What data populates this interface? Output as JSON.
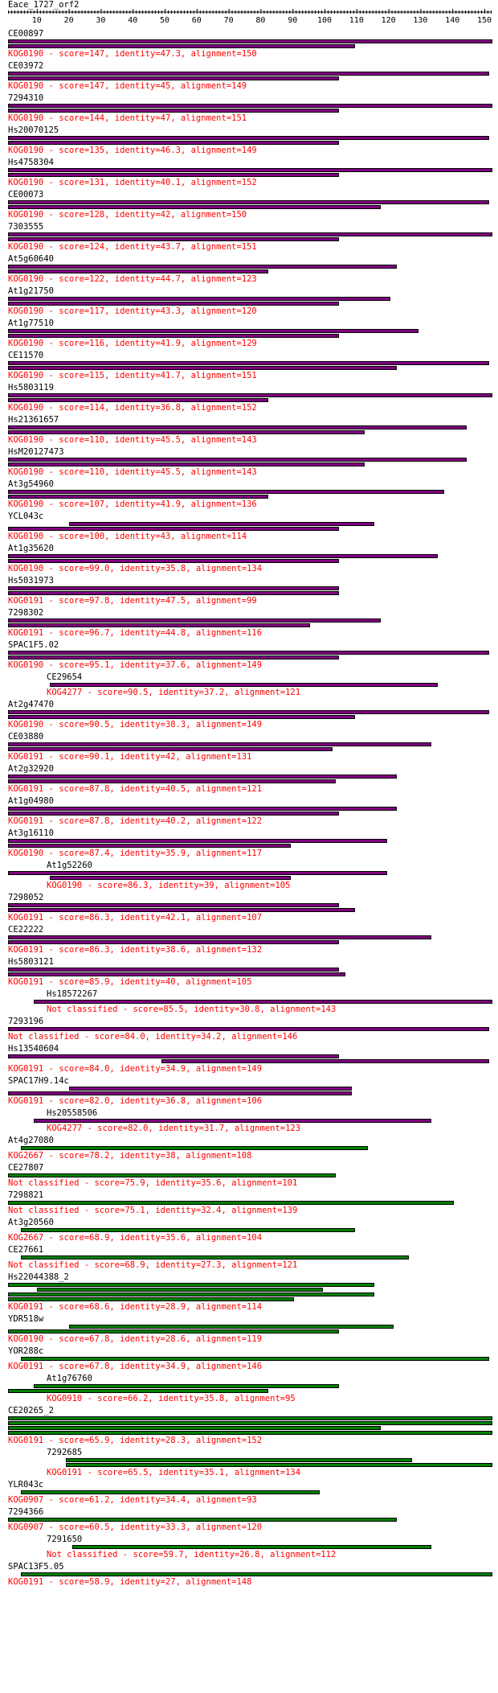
{
  "title": "Eace_1727_orf2",
  "axis": {
    "ticks": [
      "10",
      "20",
      "30",
      "40",
      "50",
      "60",
      "70",
      "80",
      "90",
      "100",
      "110",
      "120",
      "130",
      "140",
      "150"
    ],
    "max": 152
  },
  "colors": {
    "purple": "#800080",
    "green": "#008000",
    "text": "#000000",
    "info": "#ff0000"
  },
  "hits": [
    {
      "id": "CE00897",
      "indent": false,
      "info": "KOG0190 - score=147, identity=47.3, alignment=150",
      "color": "purple",
      "bars": [
        [
          1,
          152
        ],
        [
          1,
          109
        ]
      ]
    },
    {
      "id": "CE03972",
      "indent": false,
      "info": "KOG0190 - score=147, identity=45, alignment=149",
      "color": "purple",
      "bars": [
        [
          1,
          151
        ],
        [
          1,
          104
        ]
      ]
    },
    {
      "id": "7294310",
      "indent": false,
      "info": "KOG0190 - score=144, identity=47, alignment=151",
      "color": "purple",
      "bars": [
        [
          1,
          152
        ],
        [
          1,
          104
        ]
      ]
    },
    {
      "id": "Hs20070125",
      "indent": false,
      "info": "KOG0190 - score=135, identity=46.3, alignment=149",
      "color": "purple",
      "bars": [
        [
          1,
          151
        ],
        [
          1,
          104
        ]
      ]
    },
    {
      "id": "Hs4758304",
      "indent": false,
      "info": "KOG0190 - score=131, identity=40.1, alignment=152",
      "color": "purple",
      "bars": [
        [
          1,
          152
        ],
        [
          1,
          104
        ]
      ]
    },
    {
      "id": "CE00073",
      "indent": false,
      "info": "KOG0190 - score=128, identity=42, alignment=150",
      "color": "purple",
      "bars": [
        [
          1,
          151
        ],
        [
          1,
          117
        ]
      ]
    },
    {
      "id": "7303555",
      "indent": false,
      "info": "KOG0190 - score=124, identity=43.7, alignment=151",
      "color": "purple",
      "bars": [
        [
          1,
          152
        ],
        [
          1,
          104
        ]
      ]
    },
    {
      "id": "At5g60640",
      "indent": false,
      "info": "KOG0190 - score=122, identity=44.7, alignment=123",
      "color": "purple",
      "bars": [
        [
          1,
          122
        ],
        [
          1,
          82
        ]
      ]
    },
    {
      "id": "At1g21750",
      "indent": false,
      "info": "KOG0190 - score=117, identity=43.3, alignment=120",
      "color": "purple",
      "bars": [
        [
          1,
          120
        ],
        [
          1,
          104
        ]
      ]
    },
    {
      "id": "At1g77510",
      "indent": false,
      "info": "KOG0190 - score=116, identity=41.9, alignment=129",
      "color": "purple",
      "bars": [
        [
          1,
          129
        ],
        [
          1,
          104
        ]
      ]
    },
    {
      "id": "CE11570",
      "indent": false,
      "info": "KOG0190 - score=115, identity=41.7, alignment=151",
      "color": "purple",
      "bars": [
        [
          1,
          151
        ],
        [
          1,
          122
        ]
      ]
    },
    {
      "id": "Hs5803119",
      "indent": false,
      "info": "KOG0190 - score=114, identity=36.8, alignment=152",
      "color": "purple",
      "bars": [
        [
          1,
          152
        ],
        [
          1,
          82
        ]
      ]
    },
    {
      "id": "Hs21361657",
      "indent": false,
      "info": "KOG0190 - score=110, identity=45.5, alignment=143",
      "color": "purple",
      "bars": [
        [
          1,
          144
        ],
        [
          1,
          112
        ]
      ]
    },
    {
      "id": "HsM20127473",
      "indent": false,
      "info": "KOG0190 - score=110, identity=45.5, alignment=143",
      "color": "purple",
      "bars": [
        [
          1,
          144
        ],
        [
          1,
          112
        ]
      ]
    },
    {
      "id": "At3g54960",
      "indent": false,
      "info": "KOG0190 - score=107, identity=41.9, alignment=136",
      "color": "purple",
      "bars": [
        [
          1,
          137
        ],
        [
          1,
          82
        ]
      ]
    },
    {
      "id": "YCL043c",
      "indent": false,
      "info": "KOG0190 - score=100, identity=43, alignment=114",
      "color": "purple",
      "bars": [
        [
          20,
          115
        ],
        [
          1,
          104
        ]
      ]
    },
    {
      "id": "At1g35620",
      "indent": false,
      "info": "KOG0190 - score=99.0, identity=35.8, alignment=134",
      "color": "purple",
      "bars": [
        [
          1,
          135
        ],
        [
          1,
          104
        ]
      ]
    },
    {
      "id": "Hs5031973",
      "indent": false,
      "info": "KOG0191 - score=97.8, identity=47.5, alignment=99",
      "color": "purple",
      "bars": [
        [
          1,
          104
        ],
        [
          1,
          104
        ]
      ]
    },
    {
      "id": "7298302",
      "indent": false,
      "info": "KOG0191 - score=96.7, identity=44.8, alignment=116",
      "color": "purple",
      "bars": [
        [
          1,
          117
        ],
        [
          1,
          95
        ]
      ]
    },
    {
      "id": "SPAC1F5.02",
      "indent": false,
      "info": "KOG0190 - score=95.1, identity=37.6, alignment=149",
      "color": "purple",
      "bars": [
        [
          1,
          151
        ],
        [
          1,
          104
        ]
      ]
    },
    {
      "id": "CE29654",
      "indent": true,
      "info": "KOG4277 - score=90.5, identity=37.2, alignment=121",
      "color": "purple",
      "bars": [
        [
          14,
          135
        ]
      ]
    },
    {
      "id": "At2g47470",
      "indent": false,
      "info": "KOG0190 - score=90.5, identity=38.3, alignment=149",
      "color": "purple",
      "bars": [
        [
          1,
          151
        ],
        [
          1,
          109
        ]
      ]
    },
    {
      "id": "CE03880",
      "indent": false,
      "info": "KOG0191 - score=90.1, identity=42, alignment=131",
      "color": "purple",
      "bars": [
        [
          1,
          133
        ],
        [
          1,
          102
        ]
      ]
    },
    {
      "id": "At2g32920",
      "indent": false,
      "info": "KOG0191 - score=87.8, identity=40.5, alignment=121",
      "color": "purple",
      "bars": [
        [
          1,
          122
        ],
        [
          1,
          103
        ]
      ]
    },
    {
      "id": "At1g04980",
      "indent": false,
      "info": "KOG0191 - score=87.8, identity=40.2, alignment=122",
      "color": "purple",
      "bars": [
        [
          1,
          122
        ],
        [
          1,
          104
        ]
      ]
    },
    {
      "id": "At3g16110",
      "indent": false,
      "info": "KOG0190 - score=87.4, identity=35.9, alignment=117",
      "color": "purple",
      "bars": [
        [
          1,
          119
        ],
        [
          1,
          89
        ]
      ]
    },
    {
      "id": "At1g52260",
      "indent": true,
      "info": "KOG0190 - score=86.3, identity=39, alignment=105",
      "color": "purple",
      "bars": [
        [
          1,
          119
        ],
        [
          14,
          89
        ]
      ]
    },
    {
      "id": "7298052",
      "indent": false,
      "info": "KOG0191 - score=86.3, identity=42.1, alignment=107",
      "color": "purple",
      "bars": [
        [
          1,
          104
        ],
        [
          1,
          109
        ]
      ]
    },
    {
      "id": "CE22222",
      "indent": false,
      "info": "KOG0191 - score=86.3, identity=38.6, alignment=132",
      "color": "purple",
      "bars": [
        [
          1,
          133
        ],
        [
          1,
          104
        ]
      ]
    },
    {
      "id": "Hs5803121",
      "indent": false,
      "info": "KOG0191 - score=85.9, identity=40, alignment=105",
      "color": "purple",
      "bars": [
        [
          1,
          104
        ],
        [
          1,
          106
        ]
      ]
    },
    {
      "id": "Hs18572267",
      "indent": true,
      "info": "Not classified - score=85.5, identity=30.8, alignment=143",
      "color": "purple",
      "bars": [
        [
          9,
          152
        ]
      ]
    },
    {
      "id": "7293196",
      "indent": false,
      "info": "Not classified - score=84.0, identity=34.2, alignment=146",
      "color": "purple",
      "bars": [
        [
          1,
          151
        ]
      ]
    },
    {
      "id": "Hs13540604",
      "indent": false,
      "info": "KOG0191 - score=84.0, identity=34.9, alignment=149",
      "color": "purple",
      "bars": [
        [
          1,
          104
        ],
        [
          49,
          151
        ]
      ]
    },
    {
      "id": "SPAC17H9.14c",
      "indent": false,
      "info": "KOG0191 - score=82.0, identity=36.8, alignment=106",
      "color": "purple",
      "bars": [
        [
          20,
          108
        ],
        [
          1,
          108
        ]
      ]
    },
    {
      "id": "Hs20558506",
      "indent": true,
      "info": "KOG4277 - score=82.0, identity=31.7, alignment=123",
      "color": "purple",
      "bars": [
        [
          9,
          133
        ]
      ]
    },
    {
      "id": "At4g27080",
      "indent": false,
      "info": "KOG2667 - score=78.2, identity=38, alignment=108",
      "color": "green",
      "bars": [
        [
          5,
          113
        ]
      ]
    },
    {
      "id": "CE27807",
      "indent": false,
      "info": "Not classified - score=75.9, identity=35.6, alignment=101",
      "color": "green",
      "bars": [
        [
          1,
          103
        ]
      ]
    },
    {
      "id": "7298821",
      "indent": false,
      "info": "Not classified - score=75.1, identity=32.4, alignment=139",
      "color": "green",
      "bars": [
        [
          1,
          140
        ]
      ]
    },
    {
      "id": "At3g20560",
      "indent": false,
      "info": "KOG2667 - score=68.9, identity=35.6, alignment=104",
      "color": "green",
      "bars": [
        [
          5,
          109
        ]
      ]
    },
    {
      "id": "CE27661",
      "indent": false,
      "info": "Not classified - score=68.9, identity=27.3, alignment=121",
      "color": "green",
      "bars": [
        [
          5,
          126
        ]
      ]
    },
    {
      "id": "Hs22044388_2",
      "indent": false,
      "info": "KOG0191 - score=68.6, identity=28.9, alignment=114",
      "color": "green",
      "bars": [
        [
          1,
          115
        ],
        [
          10,
          99
        ],
        [
          1,
          115
        ],
        [
          1,
          90
        ]
      ]
    },
    {
      "id": "YDR518w",
      "indent": false,
      "info": "KOG0190 - score=67.8, identity=28.6, alignment=119",
      "color": "green",
      "bars": [
        [
          20,
          121
        ],
        [
          1,
          104
        ]
      ]
    },
    {
      "id": "YOR288c",
      "indent": false,
      "info": "KOG0191 - score=67.8, identity=34.9, alignment=146",
      "color": "green",
      "bars": [
        [
          5,
          151
        ]
      ]
    },
    {
      "id": "At1g76760",
      "indent": true,
      "info": "KOG0910 - score=66.2, identity=35.8, alignment=95",
      "color": "green",
      "bars": [
        [
          9,
          104
        ],
        [
          1,
          82
        ]
      ]
    },
    {
      "id": "CE20265_2",
      "indent": false,
      "info": "KOG0191 - score=65.9, identity=28.3, alignment=152",
      "color": "green",
      "bars": [
        [
          1,
          152
        ],
        [
          1,
          152
        ],
        [
          1,
          117
        ],
        [
          1,
          152
        ]
      ]
    },
    {
      "id": "7292685",
      "indent": true,
      "info": "KOG0191 - score=65.5, identity=35.1, alignment=134",
      "color": "green",
      "bars": [
        [
          19,
          127
        ],
        [
          19,
          152
        ]
      ]
    },
    {
      "id": "YLR043c",
      "indent": false,
      "info": "KOG0907 - score=61.2, identity=34.4, alignment=93",
      "color": "green",
      "bars": [
        [
          5,
          98
        ]
      ]
    },
    {
      "id": "7294366",
      "indent": false,
      "info": "KOG0907 - score=60.5, identity=33.3, alignment=120",
      "color": "green",
      "bars": [
        [
          1,
          122
        ]
      ]
    },
    {
      "id": "7291650",
      "indent": true,
      "info": "Not classified - score=59.7, identity=26.8, alignment=112",
      "color": "green",
      "bars": [
        [
          21,
          133
        ]
      ]
    },
    {
      "id": "SPAC13F5.05",
      "indent": false,
      "info": "KOG0191 - score=58.9, identity=27, alignment=148",
      "color": "green",
      "bars": [
        [
          5,
          152
        ]
      ]
    }
  ]
}
